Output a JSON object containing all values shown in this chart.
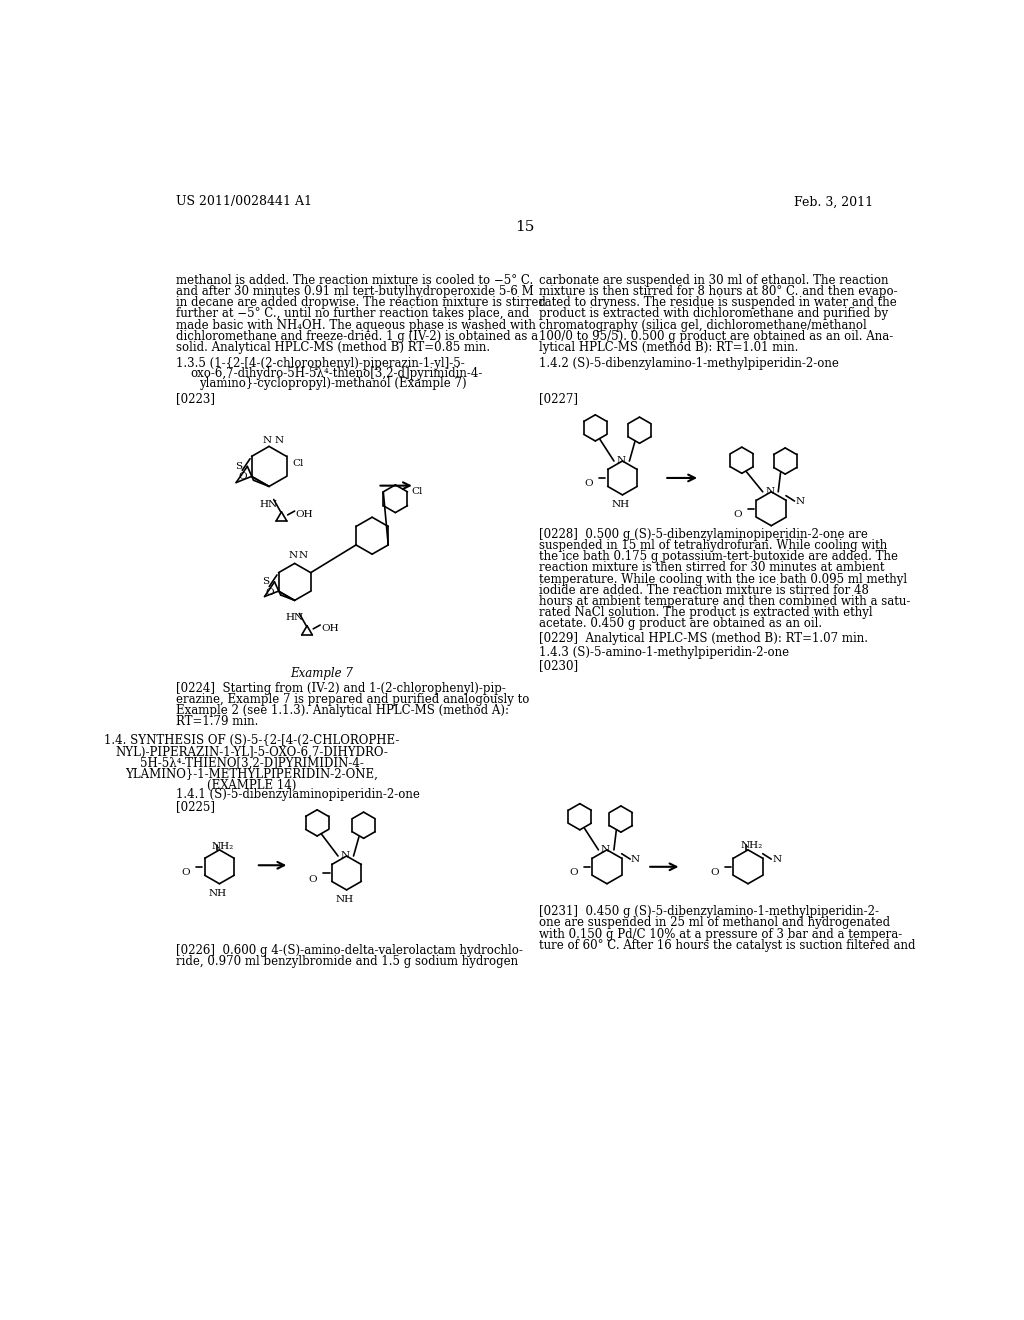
{
  "bg_color": "#ffffff",
  "header_left": "US 2011/0028441 A1",
  "header_right": "Feb. 3, 2011",
  "page_number": "15",
  "left_col_texts": [
    "methanol is added. The reaction mixture is cooled to −5° C.",
    "and after 30 minutes 0.91 ml tert-butylhydroperoxide 5-6 M",
    "in decane are added dropwise. The reaction mixture is stirred",
    "further at −5° C., until no further reaction takes place, and",
    "made basic with NH₄OH. The aqueous phase is washed with",
    "dichloromethane and freeze-dried. 1 g (IV-2) is obtained as a",
    "solid. Analytical HPLC-MS (method B) RT=0.85 min."
  ],
  "right_col_texts": [
    "carbonate are suspended in 30 ml of ethanol. The reaction",
    "mixture is then stirred for 8 hours at 80° C. and then evapo-",
    "rated to dryness. The residue is suspended in water and the",
    "product is extracted with dichloromethane and purified by",
    "chromatography (silica gel, dichloromethane/methanol",
    "100/0 to 95/5). 0.500 g product are obtained as an oil. Ana-",
    "lytical HPLC-MS (method B): RT=1.01 min."
  ],
  "para_0223": "[0223]",
  "para_0224_lines": [
    "[0224]  Starting from (IV-2) and 1-(2-chlorophenyl)-pip-",
    "erazine, Example 7 is prepared and purified analogously to",
    "Example 2 (see 1.1.3). Analytical HPLC-MS (method A):",
    "RT=1.79 min."
  ],
  "section_14_lines": [
    "1.4. SYNTHESIS OF (S)-5-{2-[4-(2-CHLOROPHE-",
    "NYL)-PIPERAZIN-1-YL]-5-OXO-6,7-DIHYDRO-",
    "5H-5λ⁴-THIENO[3,2-D]PYRIMIDIN-4-",
    "YLAMINO}-1-METHYLPIPERIDIN-2-ONE,",
    "(EXAMPLE 14)"
  ],
  "section_141_title": "1.4.1 (S)-5-dibenzylaminopiperidin-2-one",
  "para_0225": "[0225]",
  "para_0226_lines": [
    "[0226]  0.600 g 4-(S)-amino-delta-valerolactam hydrochlo-",
    "ride, 0.970 ml benzylbromide and 1.5 g sodium hydrogen"
  ],
  "section_142_title": "1.4.2 (S)-5-dibenzylamino-1-methylpiperidin-2-one",
  "para_0227": "[0227]",
  "para_0228_lines": [
    "[0228]  0.500 g (S)-5-dibenzylaminopiperidin-2-one are",
    "suspended in 15 ml of tetrahydrofuran. While cooling with",
    "the ice bath 0.175 g potassium-tert-butoxide are added. The",
    "reaction mixture is then stirred for 30 minutes at ambient",
    "temperature. While cooling with the ice bath 0.095 ml methyl",
    "iodide are added. The reaction mixture is stirred for 48",
    "hours at ambient temperature and then combined with a satu-",
    "rated NaCl solution. The product is extracted with ethyl",
    "acetate. 0.450 g product are obtained as an oil."
  ],
  "para_0229": "[0229]  Analytical HPLC-MS (method B): RT=1.07 min.",
  "section_143_title": "1.4.3 (S)-5-amino-1-methylpiperidin-2-one",
  "para_0230": "[0230]",
  "para_0231_lines": [
    "[0231]  0.450 g (S)-5-dibenzylamino-1-methylpiperidin-2-",
    "one are suspended in 25 ml of methanol and hydrogenated",
    "with 0.150 g Pd/C 10% at a pressure of 3 bar and a tempera-",
    "ture of 60° C. After 16 hours the catalyst is suction filtered and"
  ],
  "example7_label": "Example 7",
  "section_135_lines": [
    "1.3.5 (1-{2-[4-(2-chlorophenyl)-piperazin-1-yl]-5-",
    "oxo-6,7-dihydro-5H-5λ⁴-thieno[3,2-d]pyrimidin-4-",
    "ylamino}-cyclopropyl)-methanol (Example 7)"
  ]
}
